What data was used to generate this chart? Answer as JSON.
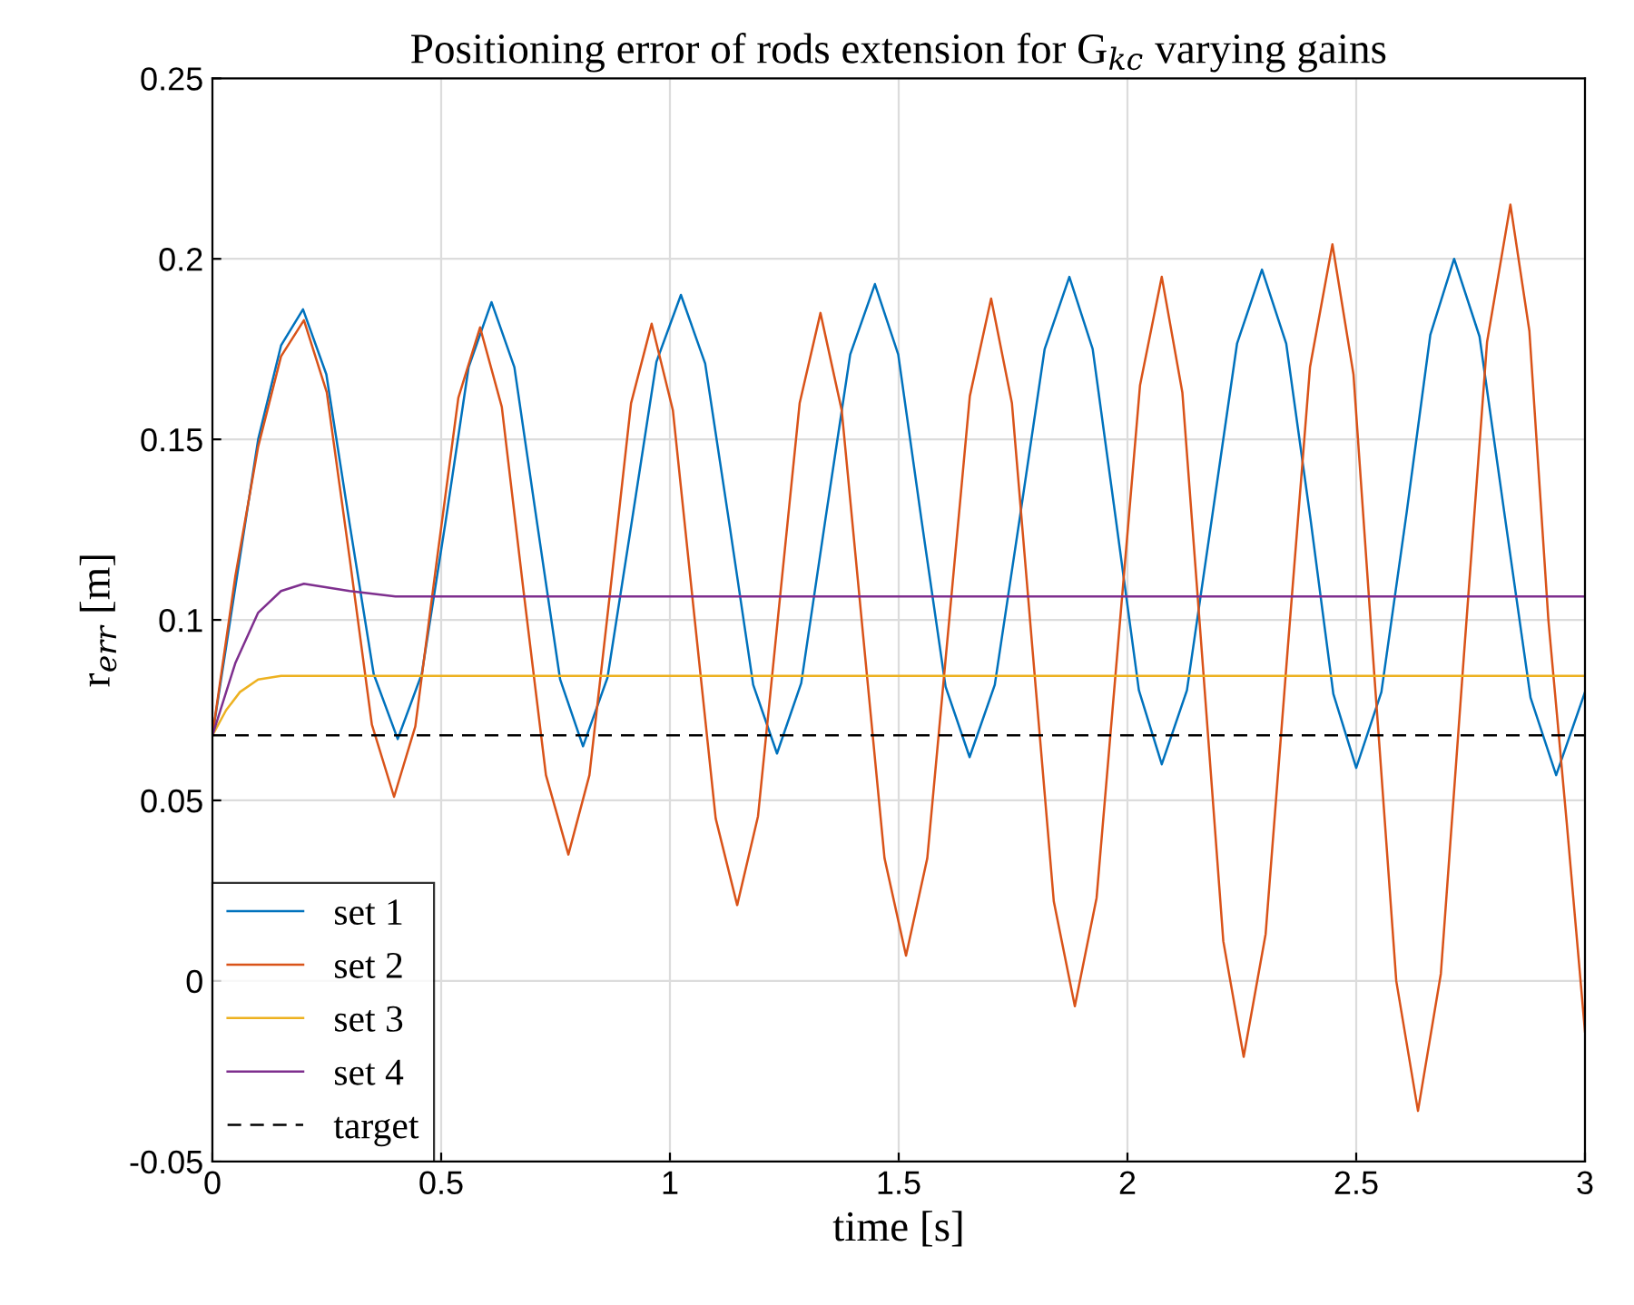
{
  "chart_data": {
    "type": "line",
    "title": "Positioning error of rods extension for G$_{kc}$ varying gains",
    "xlabel": "time [s]",
    "ylabel": "r$_{err}$ [m]",
    "xlim": [
      0,
      3
    ],
    "ylim": [
      -0.05,
      0.25
    ],
    "xticks": [
      0,
      0.5,
      1,
      1.5,
      2,
      2.5,
      3
    ],
    "yticks": [
      -0.05,
      0,
      0.05,
      0.1,
      0.15,
      0.2,
      0.25
    ],
    "grid": true,
    "legend": "bottom left",
    "series": [
      {
        "name": "set 1",
        "color": "#0072bd",
        "line_style": "solid",
        "x": [
          0,
          0.1,
          0.15,
          0.198,
          0.249,
          0.3,
          0.3525,
          0.405,
          0.4575,
          0.51,
          0.56,
          0.61,
          0.66,
          0.71,
          0.76,
          0.81,
          0.8635,
          0.917,
          0.9705,
          1.024,
          1.077,
          1.13,
          1.182,
          1.234,
          1.287,
          1.34,
          1.394,
          1.448,
          1.499,
          1.55,
          1.6025,
          1.655,
          1.71,
          1.765,
          1.819,
          1.873,
          1.924,
          1.975,
          2.025,
          2.075,
          2.13,
          2.185,
          2.2395,
          2.294,
          2.347,
          2.4,
          2.45,
          2.5,
          2.555,
          2.61,
          2.662,
          2.714,
          2.7695,
          2.825,
          2.881,
          2.937,
          3.0
        ],
        "values": [
          0.068,
          0.15,
          0.176,
          0.186,
          0.168,
          0.1265,
          0.085,
          0.067,
          0.085,
          0.1275,
          0.17,
          0.188,
          0.17,
          0.1265,
          0.0835,
          0.065,
          0.084,
          0.1275,
          0.1715,
          0.19,
          0.171,
          0.1265,
          0.082,
          0.063,
          0.0825,
          0.128,
          0.1735,
          0.193,
          0.1735,
          0.1275,
          0.0815,
          0.062,
          0.082,
          0.1285,
          0.175,
          0.195,
          0.175,
          0.1275,
          0.0805,
          0.06,
          0.0805,
          0.1285,
          0.1765,
          0.197,
          0.1765,
          0.128,
          0.0795,
          0.059,
          0.08,
          0.1295,
          0.179,
          0.2,
          0.1785,
          0.1285,
          0.0785,
          0.057,
          0.08
        ]
      },
      {
        "name": "set 2",
        "color": "#d95319",
        "line_style": "solid",
        "x": [
          0,
          0.05,
          0.1,
          0.15,
          0.2,
          0.25,
          0.3,
          0.3485,
          0.397,
          0.4435,
          0.49,
          0.5375,
          0.585,
          0.6325,
          0.68,
          0.729,
          0.778,
          0.824,
          0.87,
          0.915,
          0.96,
          1.0065,
          1.053,
          1.1,
          1.147,
          1.1925,
          1.238,
          1.2835,
          1.329,
          1.3755,
          1.422,
          1.469,
          1.516,
          1.5625,
          1.609,
          1.6555,
          1.702,
          1.7475,
          1.793,
          1.839,
          1.885,
          1.9325,
          1.98,
          2.0275,
          2.075,
          2.12,
          2.165,
          2.2095,
          2.254,
          2.302,
          2.35,
          2.399,
          2.448,
          2.494,
          2.54,
          2.5875,
          2.635,
          2.685,
          2.735,
          2.786,
          2.837,
          2.8785,
          2.92,
          2.96,
          3.0
        ],
        "values": [
          0.068,
          0.112,
          0.148,
          0.173,
          0.183,
          0.163,
          0.117,
          0.071,
          0.051,
          0.0705,
          0.116,
          0.1615,
          0.181,
          0.159,
          0.108,
          0.057,
          0.035,
          0.057,
          0.1085,
          0.16,
          0.182,
          0.158,
          0.1015,
          0.045,
          0.021,
          0.0456,
          0.103,
          0.16,
          0.185,
          0.158,
          0.096,
          0.034,
          0.007,
          0.034,
          0.098,
          0.162,
          0.189,
          0.16,
          0.091,
          0.022,
          -0.007,
          0.023,
          0.094,
          0.165,
          0.195,
          0.163,
          0.087,
          0.011,
          -0.021,
          0.013,
          0.0915,
          0.17,
          0.204,
          0.168,
          0.084,
          0.0,
          -0.036,
          0.002,
          0.0895,
          0.177,
          0.215,
          0.18,
          0.1,
          0.044,
          -0.014
        ]
      },
      {
        "name": "set 3",
        "color": "#edb120",
        "line_style": "solid",
        "x": [
          0,
          0.03,
          0.06,
          0.1,
          0.15,
          3.0
        ],
        "values": [
          0.068,
          0.075,
          0.08,
          0.0835,
          0.0845,
          0.0845
        ]
      },
      {
        "name": "set 4",
        "color": "#7e2f8e",
        "line_style": "solid",
        "x": [
          0,
          0.05,
          0.1,
          0.15,
          0.2,
          0.3,
          0.4,
          3.0
        ],
        "values": [
          0.068,
          0.088,
          0.102,
          0.108,
          0.11,
          0.108,
          0.1065,
          0.1065
        ]
      },
      {
        "name": "target",
        "color": "#000000",
        "line_style": "dashed",
        "x": [
          0,
          3
        ],
        "values": [
          0.068,
          0.068
        ]
      }
    ]
  }
}
